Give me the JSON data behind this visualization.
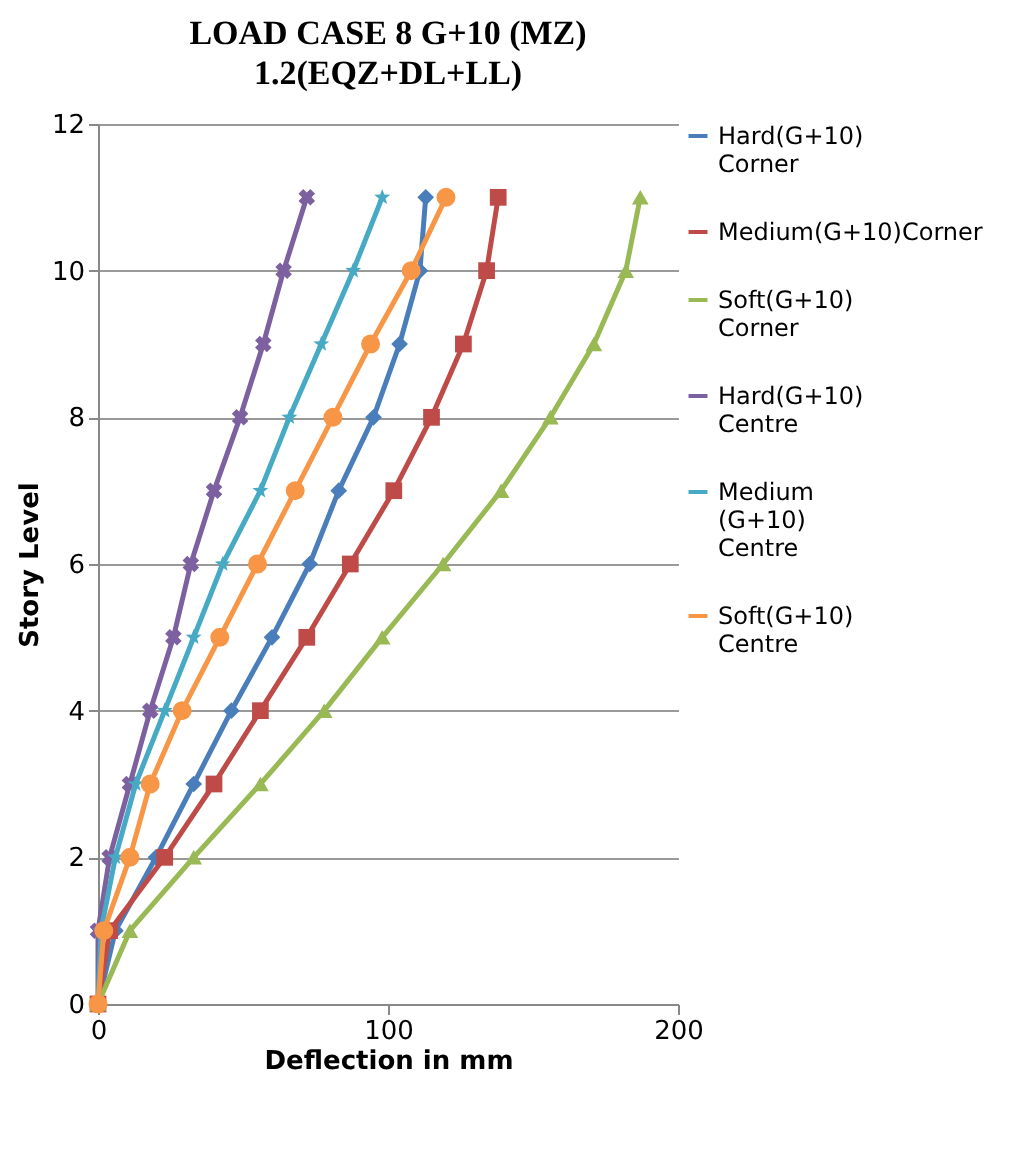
{
  "chart_data": {
    "type": "line",
    "title": "LOAD CASE 8 G+10 (MZ)",
    "subtitle": "1.2(EQZ+DL+LL)",
    "xlabel": "Deflection in mm",
    "ylabel": "Story Level",
    "xlim": [
      0,
      200
    ],
    "xticks": [
      0,
      100,
      200
    ],
    "ylim": [
      0,
      12
    ],
    "yticks": [
      0,
      2,
      4,
      6,
      8,
      10,
      12
    ],
    "grid": "y",
    "legend": "right",
    "series": [
      {
        "name": "Hard(G+10) Corner",
        "color": "#4a7ebb",
        "marker": "diamond",
        "x": [
          0,
          6,
          20,
          33,
          46,
          60,
          73,
          83,
          95,
          104,
          111,
          113
        ],
        "values": [
          0,
          1,
          2,
          3,
          4,
          5,
          6,
          7,
          8,
          9,
          10,
          11
        ]
      },
      {
        "name": "Medium(G+10)Corner",
        "color": "#be4b48",
        "marker": "square",
        "x": [
          0,
          4,
          23,
          40,
          56,
          72,
          87,
          102,
          115,
          126,
          134,
          138
        ],
        "values": [
          0,
          1,
          2,
          3,
          4,
          5,
          6,
          7,
          8,
          9,
          10,
          11
        ]
      },
      {
        "name": "Soft(G+10) Corner",
        "color": "#98b954",
        "marker": "triangle",
        "x": [
          0,
          11,
          33,
          56,
          78,
          98,
          119,
          139,
          156,
          171,
          182,
          187
        ],
        "values": [
          0,
          1,
          2,
          3,
          4,
          5,
          6,
          7,
          8,
          9,
          10,
          11
        ]
      },
      {
        "name": "Hard(G+10) Centre",
        "color": "#7d60a0",
        "marker": "cross",
        "x": [
          0,
          0,
          4,
          11,
          18,
          26,
          32,
          40,
          49,
          57,
          64,
          72
        ],
        "values": [
          0,
          1,
          2,
          3,
          4,
          5,
          6,
          7,
          8,
          9,
          10,
          11
        ]
      },
      {
        "name": "Medium (G+10) Centre",
        "color": "#46aac5",
        "marker": "star",
        "x": [
          0,
          1,
          6,
          13,
          23,
          33,
          43,
          56,
          66,
          77,
          88,
          98
        ],
        "values": [
          0,
          1,
          2,
          3,
          4,
          5,
          6,
          7,
          8,
          9,
          10,
          11
        ]
      },
      {
        "name": "Soft(G+10) Centre",
        "color": "#f79646",
        "marker": "circle",
        "x": [
          0,
          2,
          11,
          18,
          29,
          42,
          55,
          68,
          81,
          94,
          108,
          120
        ],
        "values": [
          0,
          1,
          2,
          3,
          4,
          5,
          6,
          7,
          8,
          9,
          10,
          11
        ]
      }
    ]
  }
}
